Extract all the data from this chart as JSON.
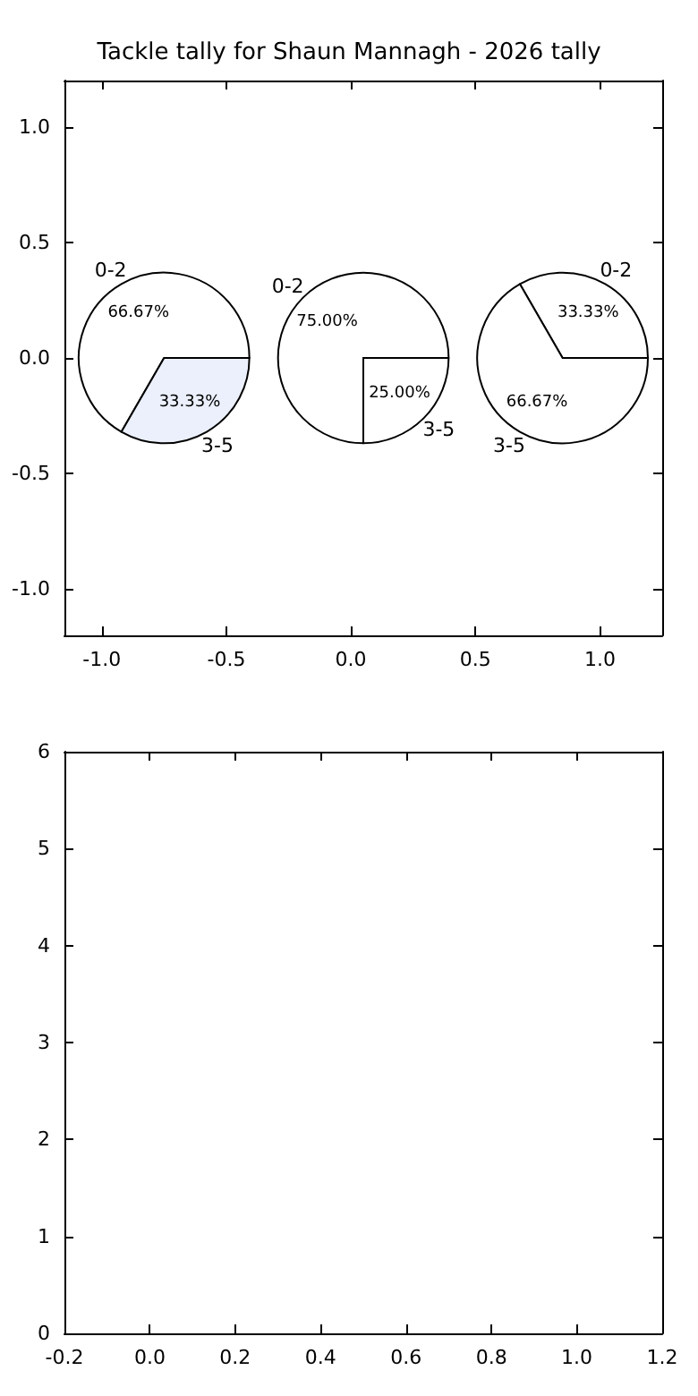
{
  "chart_data": [
    {
      "type": "pie",
      "title": "Tackle tally for Shaun Mannagh - 2026 tally",
      "categories": [
        "0-2",
        "3-5"
      ],
      "series": [
        {
          "values": [
            66.67,
            33.33
          ],
          "colors": [
            "#ffffff",
            "#ebf0fc"
          ],
          "value_labels": [
            "66.67%",
            "33.33%"
          ]
        },
        {
          "values": [
            75,
            25
          ],
          "colors": [
            "#ffffff",
            "#ffffff"
          ],
          "value_labels": [
            "75.00%",
            "25.00%"
          ]
        },
        {
          "values": [
            33.33,
            66.67
          ],
          "colors": [
            "#ffffff",
            "#ffffff"
          ],
          "value_labels": [
            "33.33%",
            "66.67%"
          ]
        }
      ]
    },
    {
      "type": "scatter",
      "xlim": [
        -1.15,
        1.25
      ],
      "ylim": [
        -1.2,
        1.2
      ],
      "xticks": [
        {
          "value": -1,
          "label": "-1.0"
        },
        {
          "value": -0.5,
          "label": "-0.5"
        },
        {
          "value": 0,
          "label": "0.0"
        },
        0.5,
        {
          "value": 1,
          "label": "1.0"
        }
      ],
      "yticks": [
        {
          "value": -1,
          "label": "-1.0"
        },
        {
          "value": -0.5,
          "label": "-0.5"
        },
        {
          "value": 0,
          "label": "0.0"
        },
        0.5,
        {
          "value": 1,
          "label": "1.0"
        }
      ]
    },
    {
      "type": "scatter",
      "xlim": [
        -0.2,
        1.2
      ],
      "ylim": [
        0,
        6
      ],
      "xticks": [
        {
          "value": -0.2,
          "label": "-0.2"
        },
        {
          "value": 0,
          "label": "0.0"
        },
        0.2,
        0.4,
        0.6,
        0.8,
        {
          "value": 1,
          "label": "1.0"
        },
        1.2
      ],
      "yticks": [
        0,
        1,
        2,
        3,
        4,
        5,
        6
      ]
    }
  ]
}
